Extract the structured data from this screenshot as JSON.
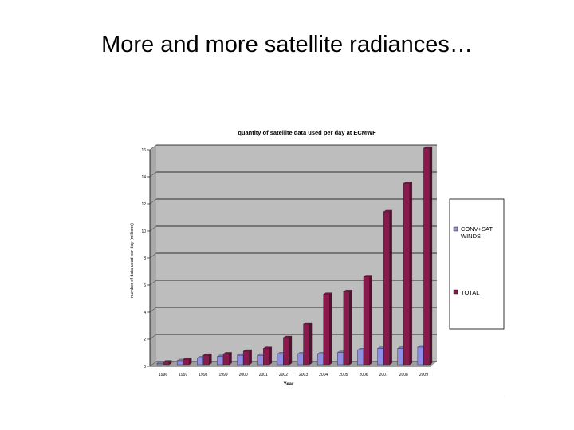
{
  "slide": {
    "title": "More and more satellite radiances…"
  },
  "colors": {
    "conv": "#8f8fe6",
    "total": "#8a1a4e",
    "background": "#bdbdbd",
    "grid": "#000000"
  },
  "chart_data": {
    "type": "bar",
    "title": "quantity of satellite data used per day at ECMWF",
    "xlabel": "Year",
    "ylabel": "number of data used per day (millions)",
    "ylim": [
      0,
      16
    ],
    "yticks": [
      0,
      2,
      4,
      6,
      8,
      10,
      12,
      14,
      16
    ],
    "categories": [
      "1996",
      "1997",
      "1998",
      "1999",
      "2000",
      "2001",
      "2002",
      "2003",
      "2004",
      "2005",
      "2006",
      "2007",
      "2008",
      "2009"
    ],
    "series": [
      {
        "name": "CONV+SAT WINDS",
        "values": [
          0.1,
          0.3,
          0.5,
          0.6,
          0.7,
          0.7,
          0.8,
          0.8,
          0.8,
          0.9,
          1.1,
          1.2,
          1.2,
          1.3
        ]
      },
      {
        "name": "TOTAL",
        "values": [
          0.2,
          0.4,
          0.7,
          0.8,
          1.0,
          1.2,
          2.0,
          3.0,
          5.2,
          5.4,
          6.5,
          11.3,
          13.4,
          16.0
        ]
      }
    ],
    "grid": true,
    "legend": "right"
  }
}
